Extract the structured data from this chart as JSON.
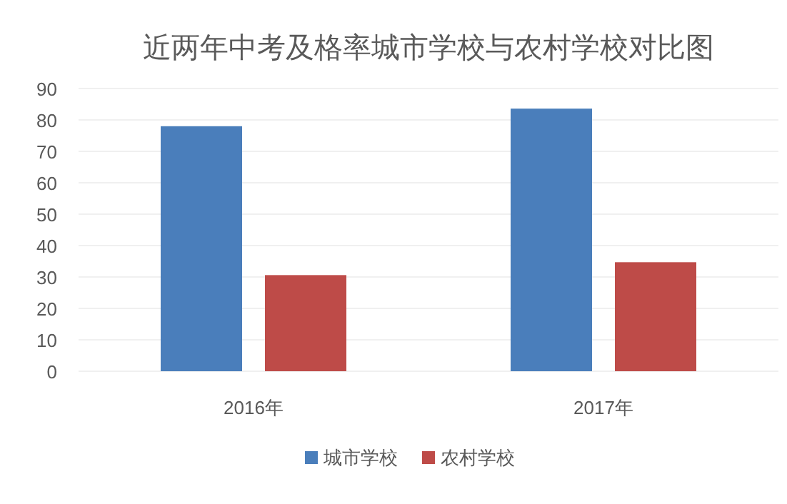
{
  "chart_data": {
    "type": "bar",
    "title": "近两年中考及格率城市学校与农村学校对比图",
    "categories": [
      "2016年",
      "2017年"
    ],
    "series": [
      {
        "name": "城市学校",
        "color": "#4a7ebb",
        "values": [
          78.0,
          83.6
        ]
      },
      {
        "name": "农村学校",
        "color": "#be4b48",
        "values": [
          30.6,
          34.7
        ]
      }
    ],
    "ylim": [
      0,
      90
    ],
    "yticks": [
      0,
      10,
      20,
      30,
      40,
      50,
      60,
      70,
      80,
      90
    ],
    "grid": "y",
    "legend": "bottom"
  }
}
